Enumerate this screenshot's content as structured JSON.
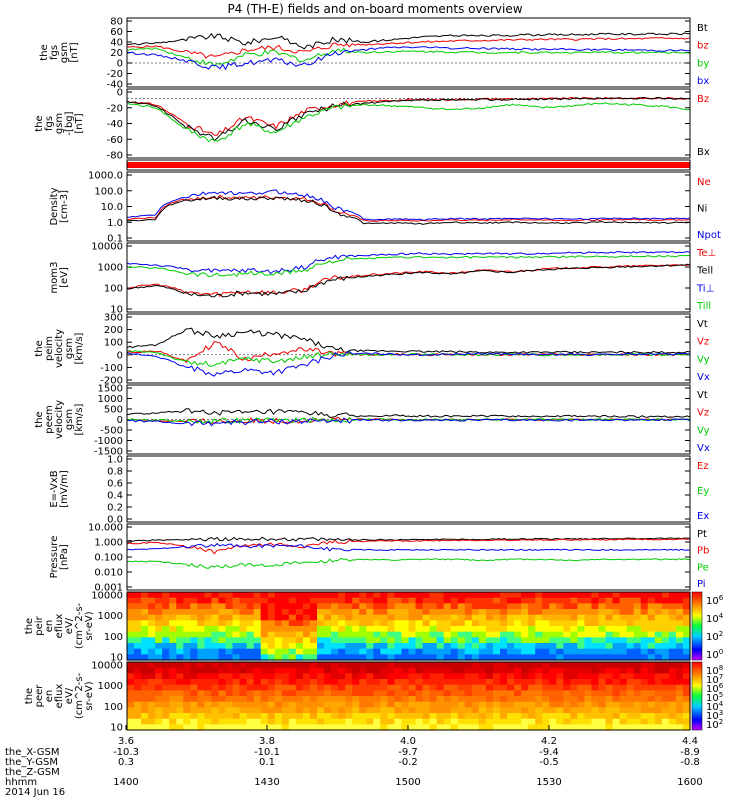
{
  "title": "P4 (TH-E) fields and on-board moments overview",
  "colors": {
    "black": "#000000",
    "red": "#ee0000",
    "green": "#00cc00",
    "blue": "#0000ee"
  },
  "chart_data": [
    {
      "type": "line",
      "ylabel": [
        "the",
        "fgs",
        "gsm",
        "[nT]"
      ],
      "ylim": [
        -40,
        80
      ],
      "yticks": [
        "80",
        "60",
        "40",
        "20",
        "0",
        "-20",
        "-40"
      ],
      "series": [
        {
          "name": "Bt",
          "color": "black",
          "values": [
            35,
            38,
            45,
            52,
            38,
            50,
            30,
            45,
            40,
            45,
            50,
            52,
            52,
            53,
            54,
            54,
            55,
            55,
            55,
            56
          ]
        },
        {
          "name": "bz",
          "color": "red",
          "values": [
            30,
            32,
            20,
            10,
            25,
            30,
            20,
            35,
            35,
            38,
            40,
            42,
            43,
            44,
            45,
            45,
            46,
            46,
            47,
            47
          ]
        },
        {
          "name": "by",
          "color": "green",
          "values": [
            25,
            28,
            10,
            -5,
            15,
            20,
            5,
            25,
            20,
            22,
            22,
            21,
            20,
            20,
            20,
            20,
            20,
            20,
            20,
            20
          ]
        },
        {
          "name": "bx",
          "color": "blue",
          "values": [
            20,
            15,
            5,
            -10,
            0,
            5,
            -5,
            20,
            25,
            30,
            30,
            28,
            28,
            27,
            26,
            26,
            25,
            25,
            24,
            24
          ]
        }
      ]
    },
    {
      "type": "line",
      "ylabel": [
        "the",
        "fgs",
        "gsm",
        "-[bg]",
        "[nT]"
      ],
      "ylim": [
        -90,
        10
      ],
      "yticks": [
        "0",
        "-20",
        "-40",
        "-60",
        "-80"
      ],
      "series": [
        {
          "name": "Bz",
          "color": "red",
          "values": [
            -5,
            -10,
            -40,
            -60,
            -30,
            -45,
            -20,
            -10,
            -5,
            -3,
            -2,
            -2,
            -1,
            -1,
            -1,
            0,
            0,
            0,
            0,
            0
          ]
        },
        {
          "name": "Bx",
          "color": "black",
          "values": [
            -5,
            -12,
            -45,
            -65,
            -35,
            -50,
            -25,
            -12,
            -8,
            -5,
            -3,
            -3,
            -2,
            -2,
            -1,
            -1,
            0,
            0,
            0,
            0
          ]
        },
        {
          "name": "",
          "color": "green",
          "values": [
            -8,
            -15,
            -50,
            -70,
            -40,
            -55,
            -30,
            -15,
            -10,
            -12,
            -15,
            -18,
            -15,
            -10,
            -15,
            -12,
            -8,
            -10,
            -12,
            -18
          ]
        }
      ]
    },
    {
      "type": "heatmap",
      "ylabel": [],
      "note": "red status bar"
    },
    {
      "type": "line",
      "ylabel": [
        "Density",
        "[cm-3]"
      ],
      "yscale": "log",
      "ylim": [
        0.1,
        1000
      ],
      "yticks": [
        "1000.0",
        "100.0",
        "10.0",
        "1.0",
        "0.1"
      ],
      "series": [
        {
          "name": "Ne",
          "color": "red",
          "values": [
            1.5,
            2,
            30,
            40,
            35,
            40,
            30,
            5,
            1.2,
            1.3,
            1.2,
            1.4,
            1.3,
            1.5,
            1.4,
            1.3,
            1.4,
            1.5,
            1.4,
            1.5
          ]
        },
        {
          "name": "Ni",
          "color": "black",
          "values": [
            1.2,
            1.5,
            25,
            35,
            30,
            35,
            25,
            4,
            0.8,
            0.9,
            0.8,
            1,
            0.9,
            1,
            0.9,
            0.9,
            1,
            1,
            0.9,
            1
          ]
        },
        {
          "name": "Npot",
          "color": "blue",
          "values": [
            2,
            3,
            40,
            80,
            60,
            90,
            50,
            8,
            1.5,
            1.6,
            1.5,
            1.7,
            1.6,
            1.8,
            1.7,
            1.6,
            1.7,
            1.8,
            1.7,
            1.8
          ]
        }
      ]
    },
    {
      "type": "line",
      "ylabel": [
        "mom3",
        "[eV]"
      ],
      "yscale": "log",
      "ylim": [
        10,
        10000
      ],
      "yticks": [
        "10000",
        "1000",
        "100",
        "10"
      ],
      "series": [
        {
          "name": "Te⊥",
          "color": "red",
          "values": [
            100,
            150,
            60,
            50,
            70,
            60,
            80,
            300,
            400,
            500,
            600,
            500,
            700,
            600,
            800,
            900,
            1000,
            1100,
            1200,
            1300
          ]
        },
        {
          "name": "Tell",
          "color": "black",
          "values": [
            90,
            130,
            50,
            40,
            60,
            50,
            70,
            250,
            350,
            450,
            550,
            450,
            650,
            550,
            750,
            850,
            950,
            1050,
            1150,
            1250
          ]
        },
        {
          "name": "Ti⊥",
          "color": "blue",
          "values": [
            1500,
            1200,
            800,
            600,
            700,
            600,
            1000,
            3000,
            3500,
            4000,
            4500,
            4000,
            4500,
            4200,
            4500,
            4800,
            5000,
            5000,
            5000,
            5000
          ]
        },
        {
          "name": "Till",
          "color": "green",
          "values": [
            1000,
            900,
            500,
            400,
            500,
            450,
            700,
            2000,
            2500,
            2800,
            3000,
            2800,
            3000,
            2900,
            3000,
            3100,
            3200,
            3200,
            3300,
            3300
          ]
        }
      ]
    },
    {
      "type": "line",
      "ylabel": [
        "the",
        "peim",
        "velocity",
        "gsm",
        "[km/s]"
      ],
      "ylim": [
        -200,
        300
      ],
      "yticks": [
        "300",
        "200",
        "100",
        "0",
        "-100",
        "-200"
      ],
      "series": [
        {
          "name": "Vt",
          "color": "black",
          "values": [
            60,
            80,
            200,
            150,
            180,
            160,
            120,
            40,
            30,
            30,
            25,
            25,
            20,
            20,
            20,
            20,
            20,
            20,
            20,
            20
          ]
        },
        {
          "name": "Vz",
          "color": "red",
          "values": [
            20,
            30,
            -50,
            100,
            -40,
            20,
            40,
            10,
            0,
            5,
            0,
            5,
            0,
            0,
            5,
            0,
            5,
            0,
            0,
            0
          ]
        },
        {
          "name": "Vy",
          "color": "green",
          "values": [
            30,
            20,
            -60,
            -80,
            -30,
            -50,
            -20,
            10,
            0,
            0,
            5,
            0,
            0,
            5,
            0,
            0,
            0,
            5,
            0,
            0
          ]
        },
        {
          "name": "Vx",
          "color": "blue",
          "values": [
            10,
            -10,
            -100,
            -150,
            -120,
            -140,
            -80,
            0,
            10,
            5,
            0,
            5,
            10,
            5,
            0,
            5,
            0,
            5,
            5,
            5
          ]
        }
      ]
    },
    {
      "type": "line",
      "ylabel": [
        "the",
        "peem",
        "velocity",
        "gsm",
        "[km/s]"
      ],
      "ylim": [
        -1500,
        1500
      ],
      "yticks": [
        "1500",
        "1000",
        "500",
        "0",
        "-500",
        "-1000",
        "-1500"
      ],
      "series": [
        {
          "name": "Vt",
          "color": "black",
          "values": [
            250,
            300,
            400,
            350,
            300,
            350,
            300,
            200,
            150,
            180,
            160,
            150,
            170,
            160,
            150,
            160,
            150,
            140,
            150,
            140
          ]
        },
        {
          "name": "Vz",
          "color": "red",
          "values": [
            0,
            -50,
            -100,
            -80,
            -60,
            -50,
            -40,
            -20,
            0,
            -10,
            0,
            -10,
            0,
            -10,
            0,
            -10,
            0,
            0,
            -10,
            0
          ]
        },
        {
          "name": "Vy",
          "color": "green",
          "values": [
            0,
            -30,
            -80,
            -60,
            -50,
            -40,
            -30,
            -10,
            0,
            0,
            -10,
            0,
            0,
            0,
            -10,
            0,
            0,
            0,
            0,
            0
          ]
        },
        {
          "name": "Vx",
          "color": "blue",
          "values": [
            -50,
            -100,
            -200,
            -150,
            -120,
            -100,
            -80,
            -50,
            -30,
            -40,
            -30,
            -40,
            -30,
            -30,
            -30,
            -30,
            -20,
            -20,
            -20,
            -20
          ]
        }
      ]
    },
    {
      "type": "line",
      "ylabel": [
        "E=-VxB",
        "[mV/m]"
      ],
      "ylim": [
        0,
        1
      ],
      "yticks": [
        "1.0",
        "0.8",
        "0.6",
        "0.4",
        "0.2",
        "0.0"
      ],
      "series": [
        {
          "name": "Ez",
          "color": "red",
          "values": []
        },
        {
          "name": "Ey",
          "color": "green",
          "values": []
        },
        {
          "name": "Ex",
          "color": "blue",
          "values": []
        }
      ]
    },
    {
      "type": "line",
      "ylabel": [
        "Pressure",
        "[nPa]"
      ],
      "yscale": "log",
      "ylim": [
        0.001,
        10
      ],
      "yticks": [
        "10.000",
        "1.000",
        "0.100",
        "0.010",
        "0.001"
      ],
      "series": [
        {
          "name": "Pt",
          "color": "black",
          "values": [
            1.2,
            1.3,
            1.5,
            1.6,
            1.5,
            1.6,
            1.5,
            1.4,
            1.4,
            1.4,
            1.5,
            1.5,
            1.5,
            1.6,
            1.6,
            1.6,
            1.7,
            1.7,
            1.7,
            1.8
          ]
        },
        {
          "name": "Pb",
          "color": "red",
          "values": [
            0.8,
            0.9,
            0.5,
            0.2,
            0.6,
            0.7,
            0.5,
            1.0,
            1.1,
            1.2,
            1.2,
            1.3,
            1.3,
            1.3,
            1.4,
            1.4,
            1.4,
            1.5,
            1.5,
            1.5
          ]
        },
        {
          "name": "Pe",
          "color": "green",
          "values": [
            0.05,
            0.05,
            0.03,
            0.02,
            0.03,
            0.03,
            0.04,
            0.06,
            0.07,
            0.06,
            0.07,
            0.07,
            0.06,
            0.07,
            0.07,
            0.06,
            0.07,
            0.07,
            0.07,
            0.07
          ]
        },
        {
          "name": "Pi",
          "color": "blue",
          "values": [
            0.3,
            0.35,
            0.5,
            0.6,
            0.5,
            0.6,
            0.5,
            0.3,
            0.3,
            0.3,
            0.3,
            0.3,
            0.3,
            0.3,
            0.3,
            0.3,
            0.3,
            0.3,
            0.3,
            0.3
          ]
        }
      ]
    },
    {
      "type": "heatmap",
      "ylabel": [
        "the",
        "peir",
        "en",
        "eflux",
        "eV/",
        "(cm^2-s-",
        "sr-eV)"
      ],
      "yscale": "log",
      "yticks": [
        "10000",
        "1000",
        "100",
        "10"
      ],
      "colorbar_ticks": [
        "10^6",
        "10^4",
        "10^2",
        "10^0"
      ]
    },
    {
      "type": "heatmap",
      "ylabel": [
        "the",
        "peer",
        "en",
        "eflux",
        "eV/",
        "(cm^2-s-",
        "sr-eV)"
      ],
      "yscale": "log",
      "yticks": [
        "10000",
        "1000",
        "100",
        "10"
      ],
      "colorbar_ticks": [
        "10^8",
        "10^7",
        "10^6",
        "10^5",
        "10^4",
        "10^3",
        "10^2"
      ]
    }
  ],
  "x_axis": {
    "ticks": [
      "3.6",
      "3.8",
      "4.0",
      "4.2",
      "4.4"
    ],
    "rows": [
      {
        "label": "the_X-GSM",
        "values": [
          "-10.3",
          "-10.1",
          "-9.7",
          "-9.4",
          "-8.9"
        ]
      },
      {
        "label": "the_Y-GSM",
        "values": [
          "0.3",
          "0.1",
          "-0.2",
          "-0.5",
          "-0.8"
        ]
      },
      {
        "label": "the_Z-GSM",
        "values": [
          "",
          "",
          "",
          "",
          ""
        ]
      },
      {
        "label": "hhmm",
        "values": [
          "1400",
          "1430",
          "1500",
          "1530",
          "1600"
        ]
      }
    ],
    "date": "2014 Jun 16"
  }
}
